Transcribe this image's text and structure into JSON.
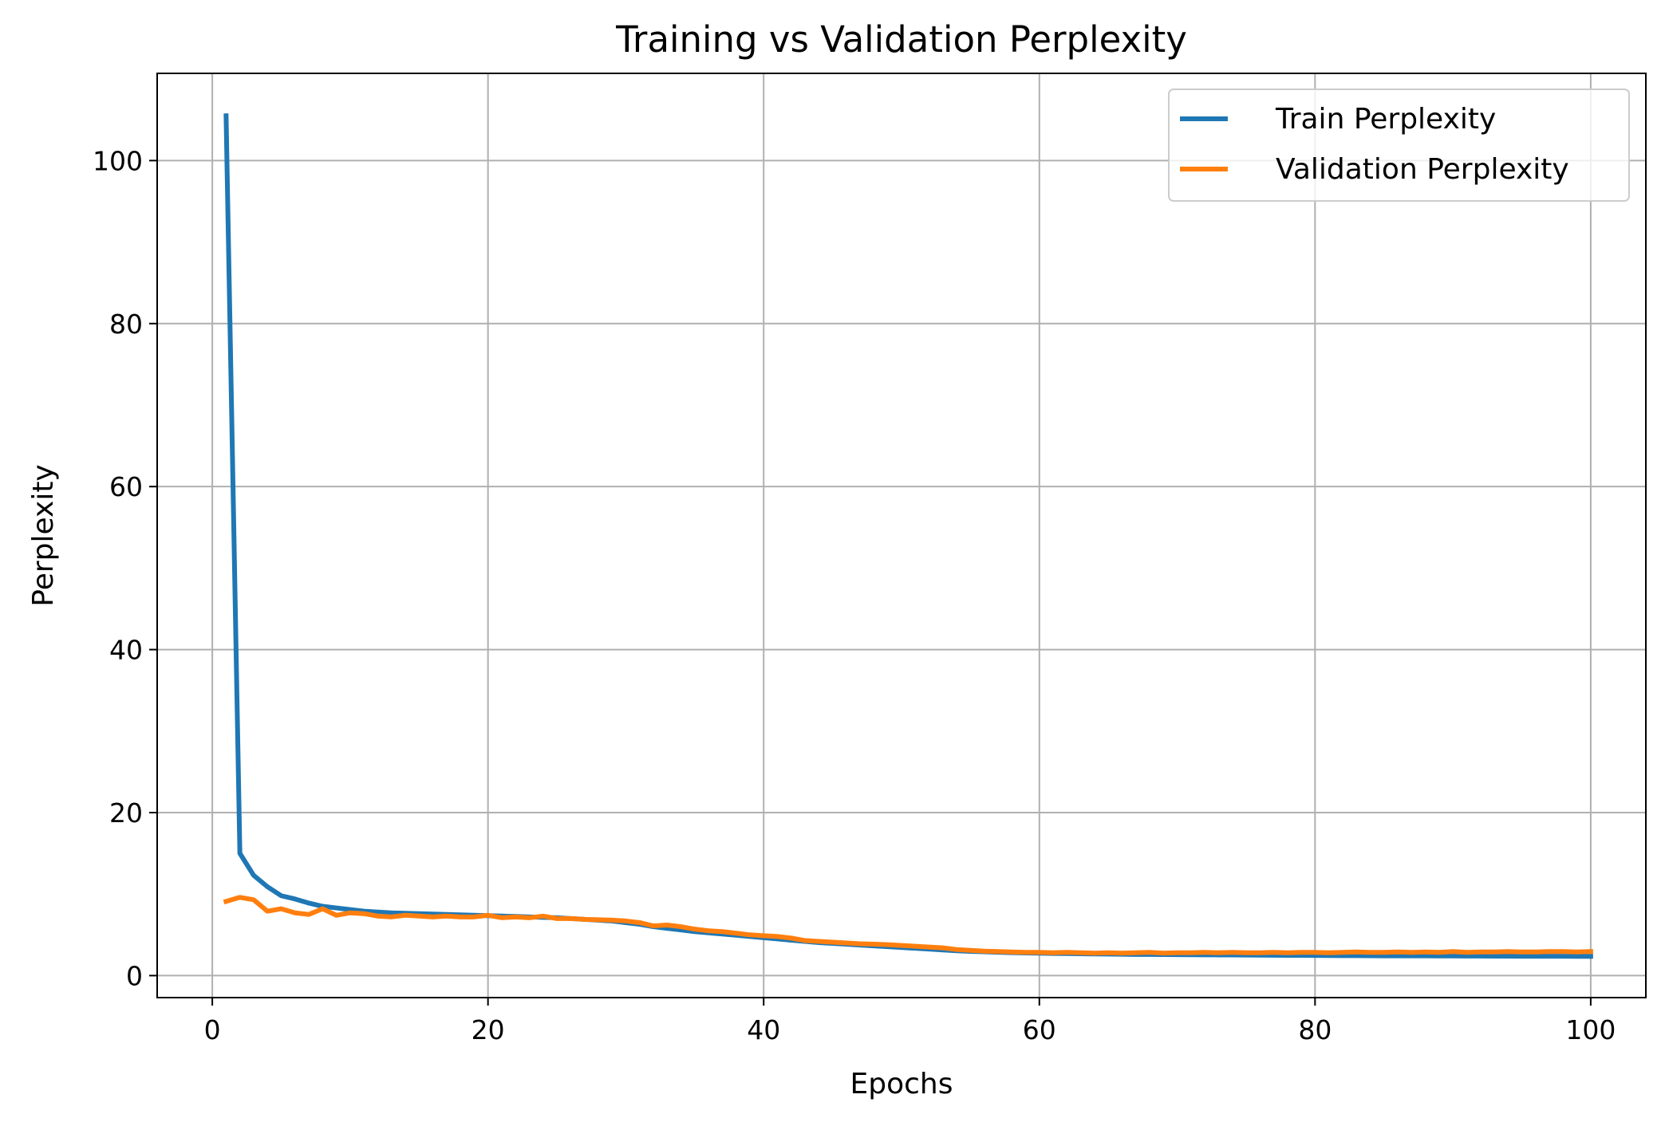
{
  "chart_data": {
    "type": "line",
    "title": "Training vs Validation Perplexity",
    "xlabel": "Epochs",
    "ylabel": "Perplexity",
    "xlim": [
      -4,
      104
    ],
    "ylim": [
      -2.7,
      110.7
    ],
    "xticks": [
      0,
      20,
      40,
      60,
      80,
      100
    ],
    "yticks": [
      0,
      20,
      40,
      60,
      80,
      100
    ],
    "grid": true,
    "legend_position": "top-right",
    "series": [
      {
        "name": "Train Perplexity",
        "color": "#1f77b4",
        "values": [
          105.5,
          15.0,
          12.3,
          10.9,
          9.8,
          9.4,
          8.9,
          8.5,
          8.3,
          8.1,
          7.9,
          7.8,
          7.7,
          7.65,
          7.6,
          7.55,
          7.5,
          7.45,
          7.4,
          7.35,
          7.3,
          7.25,
          7.2,
          7.15,
          7.1,
          7.0,
          6.9,
          6.8,
          6.7,
          6.5,
          6.3,
          6.0,
          5.8,
          5.6,
          5.4,
          5.25,
          5.1,
          4.95,
          4.8,
          4.65,
          4.5,
          4.35,
          4.2,
          4.05,
          3.95,
          3.85,
          3.75,
          3.65,
          3.55,
          3.45,
          3.35,
          3.25,
          3.15,
          3.05,
          2.98,
          2.92,
          2.86,
          2.82,
          2.78,
          2.75,
          2.72,
          2.7,
          2.68,
          2.66,
          2.64,
          2.62,
          2.6,
          2.59,
          2.58,
          2.57,
          2.56,
          2.55,
          2.54,
          2.53,
          2.52,
          2.51,
          2.5,
          2.49,
          2.48,
          2.47,
          2.46,
          2.45,
          2.45,
          2.44,
          2.43,
          2.43,
          2.42,
          2.42,
          2.41,
          2.41,
          2.4,
          2.4,
          2.39,
          2.39,
          2.38,
          2.38,
          2.37,
          2.37,
          2.36,
          2.36
        ]
      },
      {
        "name": "Validation Perplexity",
        "color": "#ff7f0e",
        "values": [
          9.1,
          9.6,
          9.3,
          7.9,
          8.2,
          7.7,
          7.5,
          8.2,
          7.4,
          7.7,
          7.6,
          7.3,
          7.2,
          7.4,
          7.3,
          7.2,
          7.3,
          7.2,
          7.2,
          7.4,
          7.1,
          7.2,
          7.1,
          7.3,
          7.0,
          7.0,
          6.9,
          6.85,
          6.8,
          6.7,
          6.5,
          6.1,
          6.2,
          6.0,
          5.7,
          5.5,
          5.4,
          5.2,
          5.0,
          4.9,
          4.8,
          4.6,
          4.3,
          4.2,
          4.1,
          4.0,
          3.9,
          3.85,
          3.8,
          3.7,
          3.6,
          3.5,
          3.4,
          3.2,
          3.1,
          3.0,
          2.95,
          2.9,
          2.85,
          2.85,
          2.8,
          2.85,
          2.8,
          2.75,
          2.8,
          2.75,
          2.8,
          2.85,
          2.75,
          2.8,
          2.8,
          2.85,
          2.8,
          2.85,
          2.8,
          2.8,
          2.85,
          2.8,
          2.85,
          2.85,
          2.8,
          2.85,
          2.9,
          2.85,
          2.85,
          2.9,
          2.85,
          2.9,
          2.85,
          2.95,
          2.85,
          2.9,
          2.9,
          2.95,
          2.9,
          2.9,
          2.95,
          2.95,
          2.9,
          2.95
        ]
      }
    ]
  }
}
